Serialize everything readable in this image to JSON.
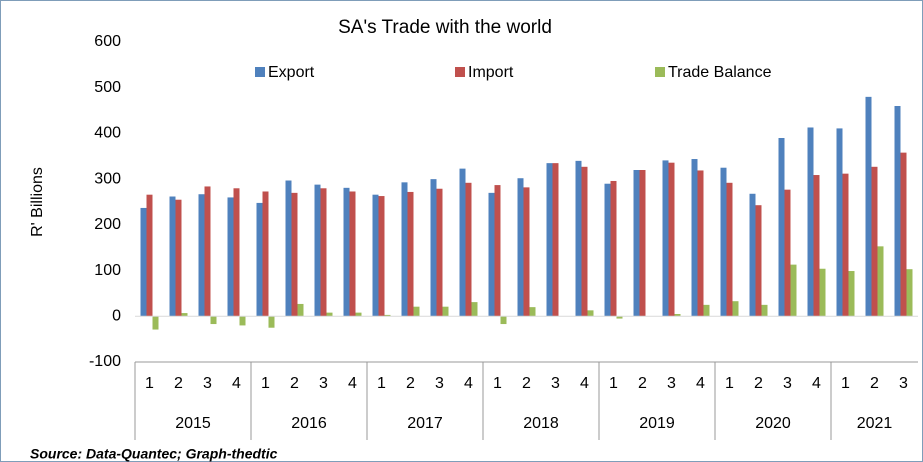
{
  "chart_data": {
    "type": "bar",
    "title": "SA's Trade with the world",
    "y_label": "R' Billions",
    "source": "Source: Data-Quantec; Graph-thedtic",
    "categories": [
      "1",
      "2",
      "3",
      "4",
      "1",
      "2",
      "3",
      "4",
      "1",
      "2",
      "3",
      "4",
      "1",
      "2",
      "3",
      "4",
      "1",
      "2",
      "3",
      "4",
      "1",
      "2",
      "3",
      "4",
      "1",
      "2",
      "3"
    ],
    "category_groups": [
      "2015",
      "2016",
      "2017",
      "2018",
      "2019",
      "2020",
      "2021"
    ],
    "series": [
      {
        "name": "Export",
        "color": "#4f81bd",
        "values": [
          237,
          262,
          267,
          260,
          248,
          297,
          288,
          281,
          266,
          293,
          300,
          323,
          270,
          302,
          335,
          340,
          290,
          320,
          341,
          344,
          325,
          268,
          390,
          413,
          411,
          480,
          460
        ]
      },
      {
        "name": "Import",
        "color": "#c0504d",
        "values": [
          266,
          255,
          284,
          280,
          273,
          270,
          280,
          273,
          263,
          272,
          279,
          292,
          287,
          282,
          335,
          327,
          296,
          320,
          336,
          319,
          292,
          243,
          277,
          309,
          312,
          327,
          358
        ]
      },
      {
        "name": "Trade Balance",
        "color": "#9bbb59",
        "values": [
          -29,
          7,
          -17,
          -20,
          -25,
          27,
          8,
          8,
          3,
          21,
          21,
          31,
          -17,
          20,
          0,
          13,
          -5,
          0,
          5,
          25,
          33,
          25,
          113,
          104,
          99,
          153,
          103
        ]
      }
    ],
    "ylim": [
      -100,
      600
    ],
    "yticks": [
      -100,
      0,
      100,
      200,
      300,
      400,
      500,
      600
    ],
    "grid": false,
    "legend": "top"
  }
}
